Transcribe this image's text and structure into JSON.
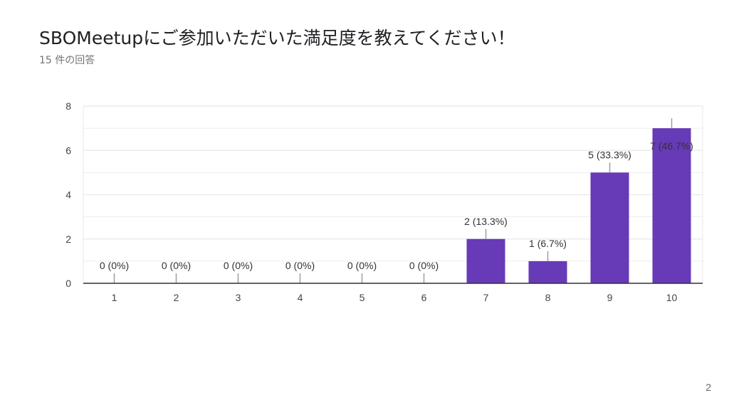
{
  "slide": {
    "title": "SBOMeetupにご参加いただいた満足度を教えてください！",
    "subtitle": "15 件の回答",
    "page_number": "2"
  },
  "colors": {
    "bar": "#673ab7",
    "grid": "#e8e8e8",
    "axis": "#333333",
    "leader": "#9e9e9e"
  },
  "chart_data": {
    "type": "bar",
    "categories": [
      "1",
      "2",
      "3",
      "4",
      "5",
      "6",
      "7",
      "8",
      "9",
      "10"
    ],
    "values": [
      0,
      0,
      0,
      0,
      0,
      0,
      2,
      1,
      5,
      7
    ],
    "data_labels": [
      "0 (0%)",
      "0 (0%)",
      "0 (0%)",
      "0 (0%)",
      "0 (0%)",
      "0 (0%)",
      "2 (13.3%)",
      "1 (6.7%)",
      "5 (33.3%)",
      "7 (46.7%)"
    ],
    "yticks": [
      "0",
      "2",
      "4",
      "6",
      "8"
    ],
    "ylim": [
      0,
      8
    ],
    "grid": true,
    "title": "",
    "xlabel": "",
    "ylabel": ""
  }
}
